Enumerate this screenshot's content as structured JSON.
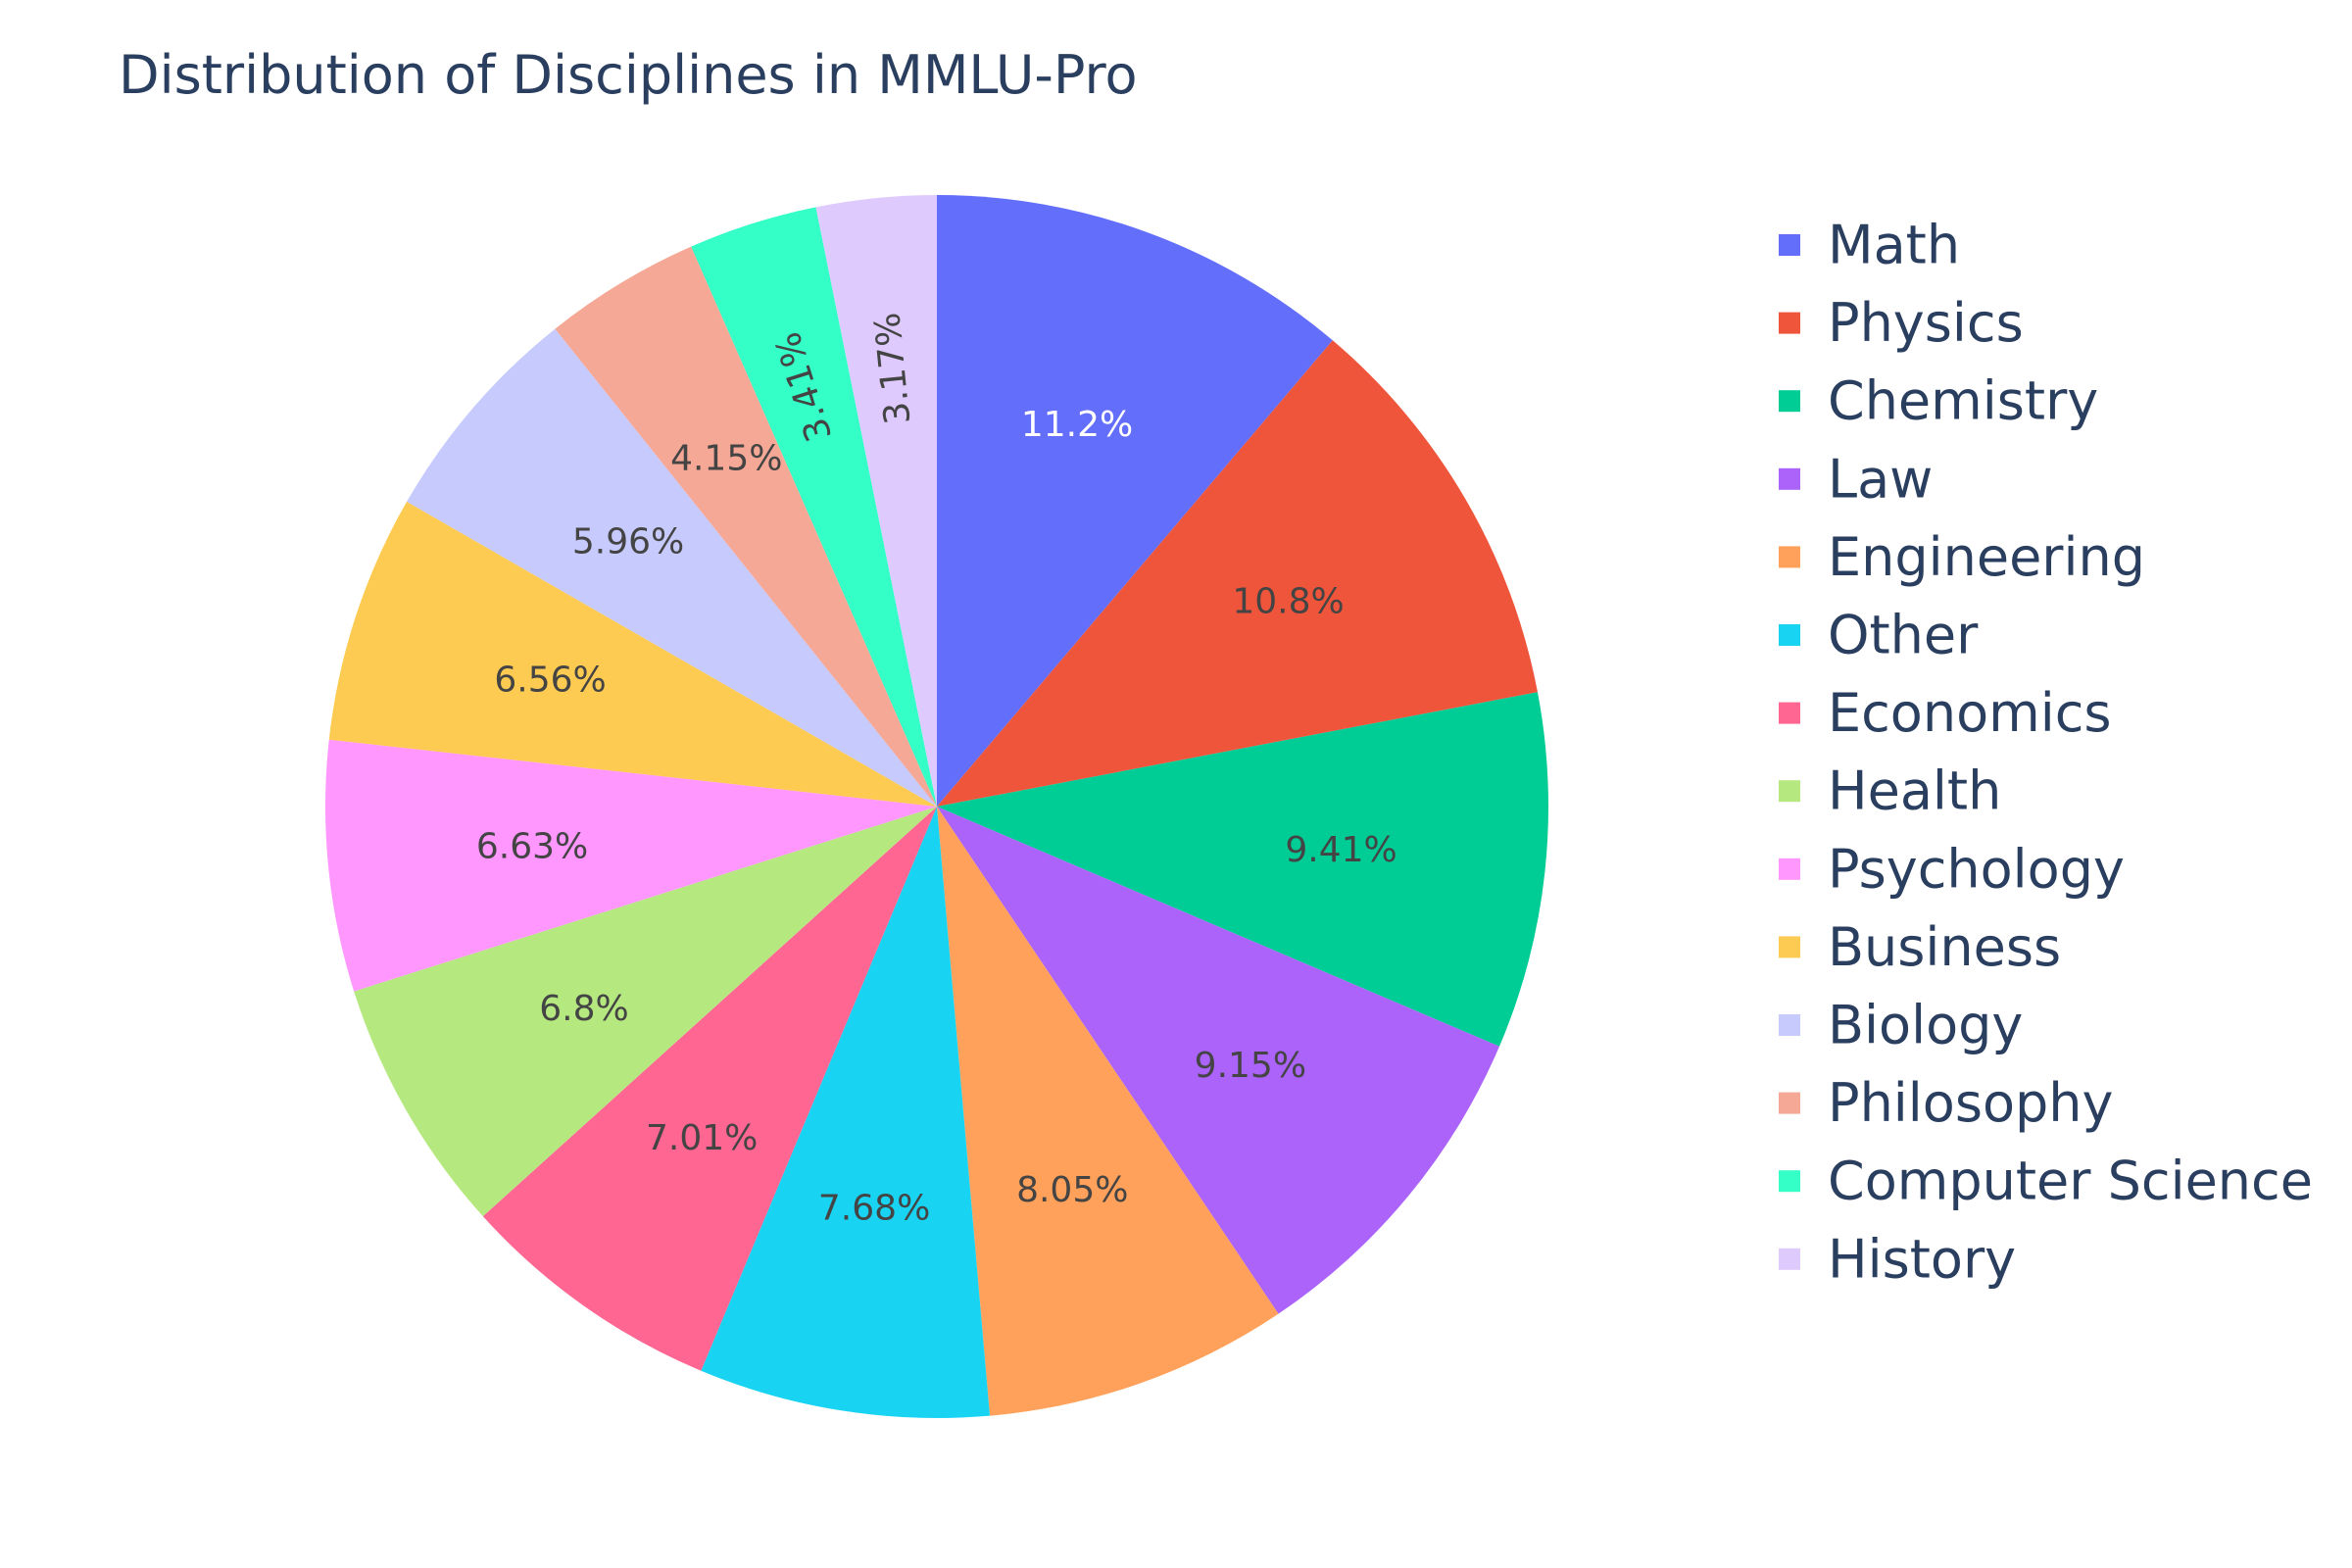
{
  "chart_data": {
    "type": "pie",
    "title": "Distribution of Disciplines in MMLU-Pro",
    "legend_position": "right",
    "direction": "clockwise",
    "slices": [
      {
        "name": "Math",
        "percent": 11.2,
        "label": "11.2%",
        "color": "#636efa",
        "label_color": "#ffffff"
      },
      {
        "name": "Physics",
        "percent": 10.8,
        "label": "10.8%",
        "color": "#ef553b",
        "label_color": "#444444"
      },
      {
        "name": "Chemistry",
        "percent": 9.41,
        "label": "9.41%",
        "color": "#00cc96",
        "label_color": "#444444"
      },
      {
        "name": "Law",
        "percent": 9.15,
        "label": "9.15%",
        "color": "#ab63fa",
        "label_color": "#444444"
      },
      {
        "name": "Engineering",
        "percent": 8.05,
        "label": "8.05%",
        "color": "#ffa15a",
        "label_color": "#444444"
      },
      {
        "name": "Other",
        "percent": 7.68,
        "label": "7.68%",
        "color": "#19d3f3",
        "label_color": "#444444"
      },
      {
        "name": "Economics",
        "percent": 7.01,
        "label": "7.01%",
        "color": "#ff6692",
        "label_color": "#444444"
      },
      {
        "name": "Health",
        "percent": 6.8,
        "label": "6.8%",
        "color": "#b6e880",
        "label_color": "#444444"
      },
      {
        "name": "Psychology",
        "percent": 6.63,
        "label": "6.63%",
        "color": "#ff97ff",
        "label_color": "#444444"
      },
      {
        "name": "Business",
        "percent": 6.56,
        "label": "6.56%",
        "color": "#fecb52",
        "label_color": "#444444"
      },
      {
        "name": "Biology",
        "percent": 5.96,
        "label": "5.96%",
        "color": "#c6cafd",
        "label_color": "#444444"
      },
      {
        "name": "Philosophy",
        "percent": 4.15,
        "label": "4.15%",
        "color": "#f6a896",
        "label_color": "#444444"
      },
      {
        "name": "Computer Science",
        "percent": 3.41,
        "label": "3.41%",
        "color": "#33ffc7",
        "label_color": "#444444"
      },
      {
        "name": "History",
        "percent": 3.17,
        "label": "3.17%",
        "color": "#decafd",
        "label_color": "#444444"
      }
    ]
  }
}
